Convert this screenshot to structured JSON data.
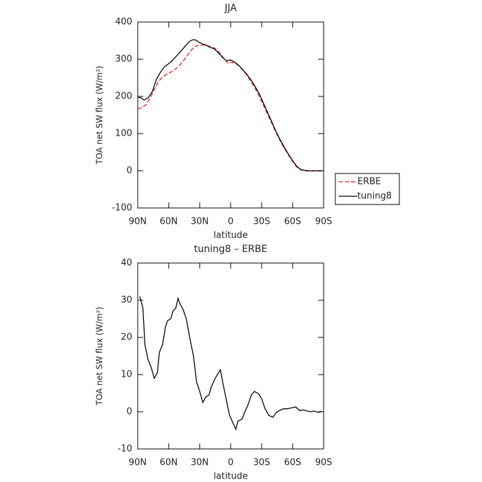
{
  "chart_data": [
    {
      "type": "line",
      "title": "JJA",
      "xlabel": "latitude",
      "ylabel": "TOA net SW flux (W/m²)",
      "xlim": [
        90,
        -90
      ],
      "xticks": [
        {
          "value": 90,
          "label": "90N"
        },
        {
          "value": 60,
          "label": "60N"
        },
        {
          "value": 30,
          "label": "30N"
        },
        0,
        {
          "value": -30,
          "label": "30S"
        },
        {
          "value": -60,
          "label": "60S"
        },
        {
          "value": -90,
          "label": "90S"
        }
      ],
      "ylim": [
        -100,
        400
      ],
      "yticks": [
        -100,
        0,
        100,
        200,
        300,
        400
      ],
      "legend": "right",
      "series": [
        {
          "name": "ERBE",
          "color": "#e41a1c",
          "dashed": true,
          "x": [
            90,
            86,
            82,
            78,
            74,
            70,
            66,
            62,
            58,
            54,
            50,
            46,
            42,
            38,
            34,
            30,
            26,
            22,
            18,
            14,
            10,
            6,
            2,
            0,
            -4,
            -8,
            -12,
            -16,
            -20,
            -24,
            -28,
            -32,
            -36,
            -40,
            -44,
            -48,
            -52,
            -56,
            -60,
            -64,
            -68,
            -72,
            -76,
            -80,
            -84,
            -90
          ],
          "values": [
            166,
            170,
            178,
            195,
            218,
            240,
            252,
            260,
            265,
            272,
            282,
            295,
            310,
            325,
            335,
            338,
            338,
            336,
            333,
            327,
            315,
            300,
            288,
            292,
            290,
            282,
            270,
            256,
            238,
            220,
            198,
            175,
            150,
            127,
            102,
            80,
            60,
            42,
            25,
            10,
            2,
            0,
            -1,
            -1,
            -1,
            -1
          ]
        },
        {
          "name": "tuning8",
          "color": "#000000",
          "dashed": false,
          "x": [
            90,
            87,
            84,
            80,
            76,
            72,
            68,
            64,
            60,
            56,
            52,
            48,
            44,
            40,
            37,
            34,
            31,
            28,
            24,
            20,
            16,
            12,
            8,
            4,
            0,
            -4,
            -8,
            -12,
            -16,
            -20,
            -24,
            -28,
            -32,
            -36,
            -40,
            -44,
            -48,
            -52,
            -56,
            -60,
            -64,
            -68,
            -72,
            -76,
            -80,
            -84,
            -88,
            -90
          ],
          "values": [
            197,
            197,
            190,
            196,
            212,
            245,
            265,
            280,
            288,
            298,
            310,
            322,
            335,
            348,
            352,
            352,
            346,
            342,
            338,
            332,
            328,
            318,
            305,
            296,
            298,
            292,
            283,
            271,
            258,
            243,
            225,
            205,
            180,
            155,
            130,
            105,
            83,
            63,
            44,
            27,
            12,
            3,
            1,
            0,
            0,
            0,
            0,
            0
          ]
        }
      ]
    },
    {
      "type": "line",
      "title": "tuning8 – ERBE",
      "xlabel": "latitude",
      "ylabel": "TOA net SW flux (W/m²)",
      "xlim": [
        90,
        -90
      ],
      "xticks": [
        {
          "value": 90,
          "label": "90N"
        },
        {
          "value": 60,
          "label": "60N"
        },
        {
          "value": 30,
          "label": "30N"
        },
        0,
        {
          "value": -30,
          "label": "30S"
        },
        {
          "value": -60,
          "label": "60S"
        },
        {
          "value": -90,
          "label": "90S"
        }
      ],
      "ylim": [
        -10,
        40
      ],
      "yticks": [
        -10,
        0,
        10,
        20,
        30,
        40
      ],
      "series": [
        {
          "color": "#000000",
          "dashed": false,
          "x": [
            88,
            85,
            83,
            80,
            77,
            74,
            71,
            69,
            66,
            63,
            61,
            58,
            56,
            53,
            51,
            49,
            46,
            43,
            39,
            36,
            33,
            30,
            27,
            24,
            21,
            19,
            15,
            10,
            7,
            3,
            1,
            -3,
            -5,
            -7,
            -11,
            -13,
            -17,
            -20,
            -23,
            -27,
            -30,
            -33,
            -37,
            -41,
            -44,
            -47,
            -51,
            -55,
            -58,
            -63,
            -67,
            -70,
            -74,
            -78,
            -81,
            -85,
            -88
          ],
          "values": [
            31,
            28,
            18,
            14,
            12,
            9,
            10.5,
            16,
            18,
            23,
            24.5,
            25,
            27,
            28,
            30.5,
            29,
            27.5,
            25,
            19,
            15,
            8,
            5.5,
            2.5,
            4,
            4.5,
            6.5,
            9,
            11.3,
            7,
            1.5,
            -1,
            -3.5,
            -4.7,
            -2.5,
            -2,
            -0.5,
            2,
            4.5,
            5.5,
            4.8,
            3.5,
            1,
            -1,
            -1.5,
            -0.2,
            0.3,
            0.8,
            0.8,
            1,
            1.3,
            0.3,
            0.5,
            0.2,
            0,
            0.2,
            -0.2,
            0.2
          ]
        }
      ]
    }
  ]
}
